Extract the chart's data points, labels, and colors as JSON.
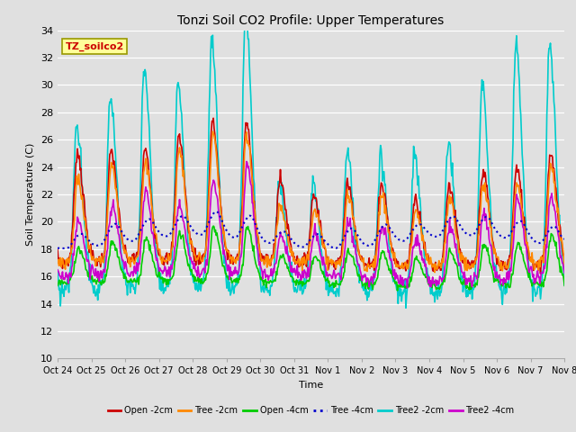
{
  "title": "Tonzi Soil CO2 Profile: Upper Temperatures",
  "xlabel": "Time",
  "ylabel": "Soil Temperature (C)",
  "ylim": [
    10,
    34
  ],
  "yticks": [
    10,
    12,
    14,
    16,
    18,
    20,
    22,
    24,
    26,
    28,
    30,
    32,
    34
  ],
  "x_labels": [
    "Oct 24",
    "Oct 25",
    "Oct 26",
    "Oct 27",
    "Oct 28",
    "Oct 29",
    "Oct 30",
    "Oct 31",
    "Nov 1",
    "Nov 2",
    "Nov 3",
    "Nov 4",
    "Nov 5",
    "Nov 6",
    "Nov 7",
    "Nov 8"
  ],
  "watermark_text": "TZ_soilco2",
  "watermark_color": "#cc0000",
  "watermark_bg": "#ffff99",
  "watermark_edge": "#999900",
  "bg_color": "#e0e0e0",
  "series": [
    {
      "label": "Open -2cm",
      "color": "#cc0000",
      "lw": 1.2,
      "ls": "-",
      "zorder": 4
    },
    {
      "label": "Tree -2cm",
      "color": "#ff8800",
      "lw": 1.2,
      "ls": "-",
      "zorder": 4
    },
    {
      "label": "Open -4cm",
      "color": "#00cc00",
      "lw": 1.2,
      "ls": "-",
      "zorder": 4
    },
    {
      "label": "Tree -4cm",
      "color": "#0000cc",
      "lw": 1.5,
      "ls": ":",
      "zorder": 5
    },
    {
      "label": "Tree2 -2cm",
      "color": "#00cccc",
      "lw": 1.2,
      "ls": "-",
      "zorder": 3
    },
    {
      "label": "Tree2 -4cm",
      "color": "#cc00cc",
      "lw": 1.2,
      "ls": "-",
      "zorder": 4
    }
  ],
  "n_days": 15,
  "pts_per_day": 48
}
